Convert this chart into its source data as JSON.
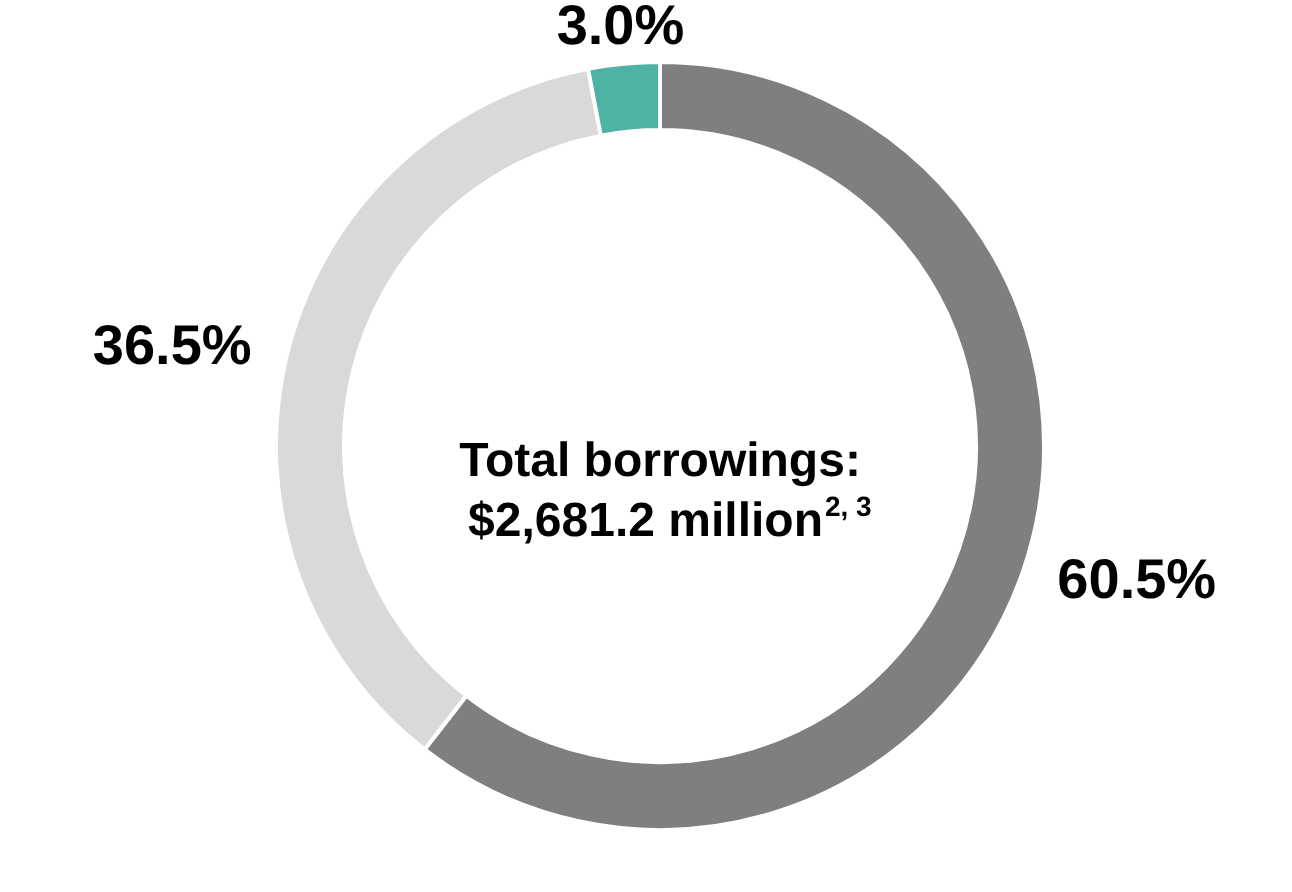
{
  "chart_data": {
    "type": "donut",
    "categories": [
      null,
      null,
      null
    ],
    "values": [
      60.5,
      36.5,
      3.0
    ],
    "colors": [
      "#7f7f7f",
      "#d9d9d9",
      "#4fb3a4"
    ],
    "value_labels": [
      "60.5%",
      "36.5%",
      "3.0%"
    ],
    "annotations": [
      "Total borrowings:",
      "$2,681.2 million$^{2, 3}$"
    ]
  }
}
